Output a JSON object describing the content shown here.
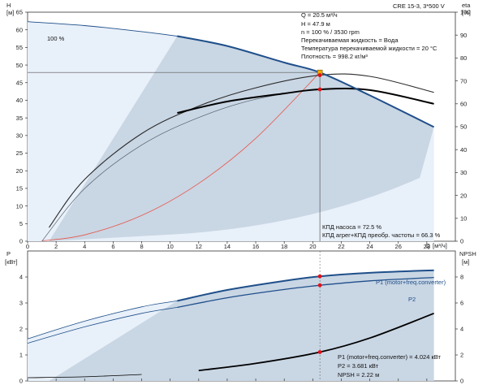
{
  "title_box": "CRE 15-3, 3*500 V",
  "top_chart": {
    "left_axis": {
      "label": "H",
      "unit": "[м]",
      "min": 0,
      "max": 65,
      "ticks": [
        0,
        5,
        10,
        15,
        20,
        25,
        30,
        35,
        40,
        45,
        50,
        55,
        60,
        65
      ]
    },
    "right_axis": {
      "label": "eta",
      "unit": "[%]",
      "min": 0,
      "max": 100,
      "ticks": [
        0,
        10,
        20,
        30,
        40,
        50,
        60,
        70,
        80,
        90,
        100
      ]
    },
    "x_axis": {
      "label": "Q",
      "unit": "[м³/ч]",
      "min": 0,
      "max": 30,
      "ticks": [
        0,
        2,
        4,
        6,
        8,
        10,
        12,
        14,
        16,
        18,
        20,
        22,
        24,
        26,
        28
      ]
    },
    "speed_label": "100 %",
    "info_lines": [
      "Q = 20.5 м³/ч",
      "H = 47.9 м",
      "n = 100 % / 3530 rpm",
      "Перекачиваемая жидкость = Вода",
      "Температура перекачиваемой жидкости = 20 °C",
      "Плотность = 998.2 кг/м³"
    ],
    "eff_lines": [
      "КПД насоса = 72.5 %",
      "КПД агрег+КПД преобр. частоты = 66.3 %"
    ]
  },
  "bottom_chart": {
    "left_axis": {
      "label": "P",
      "unit": "[кВт]",
      "min": 0,
      "max": 5,
      "ticks": [
        0,
        1,
        2,
        3,
        4
      ]
    },
    "right_axis": {
      "label": "NPSH",
      "unit": "[м]",
      "min": 0,
      "max": 10,
      "ticks": [
        0,
        2,
        4,
        6,
        8
      ]
    },
    "series_labels": [
      "P1 (motor+freq.converter)",
      "P2"
    ],
    "info_lines": [
      "P1 (motor+freq.converter) = 4.024 кВт",
      "P2 = 3.681 кВт",
      "NPSH = 2.22 м"
    ]
  },
  "chart_data": {
    "type": "line",
    "duty_point": {
      "Q": 20.5,
      "H": 47.9,
      "eta_pump": 72.5,
      "eta_total": 66.3,
      "P1": 4.024,
      "P2": 3.681,
      "NPSH": 2.22
    },
    "series": [
      {
        "name": "H",
        "axis": "H",
        "x": [
          0,
          4,
          8,
          10.5,
          14,
          18,
          20.5,
          24,
          28.5
        ],
        "y": [
          62.3,
          61.2,
          59.5,
          58.2,
          55.4,
          50.7,
          47.9,
          41.4,
          32.4
        ]
      },
      {
        "name": "eta_pump",
        "axis": "eta",
        "x": [
          1.5,
          4,
          8,
          12,
          16,
          20.5,
          24,
          28.5
        ],
        "y": [
          6,
          27,
          47,
          59,
          67,
          72.5,
          72,
          65
        ]
      },
      {
        "name": "eta_total",
        "axis": "eta",
        "x": [
          10.5,
          14,
          18,
          20.5,
          24,
          28.5
        ],
        "y": [
          56,
          61,
          64.5,
          66.3,
          66,
          60
        ]
      },
      {
        "name": "eta_total_thin",
        "axis": "eta",
        "x": [
          1,
          4,
          8,
          12,
          16,
          20.5,
          24,
          28.5
        ],
        "y": [
          0,
          23,
          42,
          54,
          62,
          66.3,
          66,
          60
        ]
      },
      {
        "name": "system",
        "axis": "H",
        "x": [
          1,
          4,
          8,
          12,
          16,
          20.5
        ],
        "y": [
          0.1,
          1.8,
          7.3,
          16.4,
          29.2,
          47.9
        ]
      },
      {
        "name": "P1 (motor+freq.converter)",
        "axis": "P",
        "x": [
          0,
          4,
          8,
          10.5,
          14,
          18,
          20.5,
          24,
          28.5
        ],
        "y": [
          1.62,
          2.3,
          2.85,
          3.08,
          3.5,
          3.85,
          4.024,
          4.16,
          4.26
        ]
      },
      {
        "name": "P2",
        "axis": "P",
        "x": [
          0,
          4,
          8,
          10.5,
          14,
          18,
          20.5,
          24,
          28.5
        ],
        "y": [
          1.45,
          2.08,
          2.6,
          2.83,
          3.2,
          3.52,
          3.681,
          3.85,
          3.98
        ]
      },
      {
        "name": "NPSH",
        "axis": "NPSH",
        "x": [
          0,
          4,
          8,
          12,
          16,
          20.5,
          24,
          28.5
        ],
        "y": [
          0.25,
          0.32,
          0.5,
          0.8,
          1.35,
          2.22,
          3.3,
          5.2
        ]
      }
    ],
    "grid": false
  }
}
